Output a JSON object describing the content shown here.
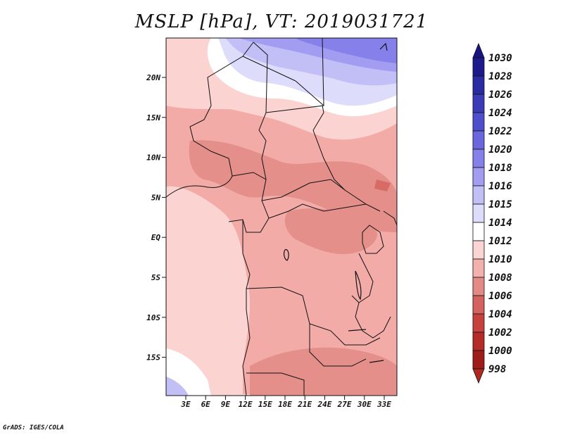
{
  "title": "MSLP [hPa], VT: 2019031721",
  "credit": "GrADS: IGES/COLA",
  "map": {
    "lat_labels": [
      "20N",
      "15N",
      "10N",
      "5N",
      "EQ",
      "5S",
      "10S",
      "15S"
    ],
    "lon_labels": [
      "3E",
      "6E",
      "9E",
      "12E",
      "15E",
      "18E",
      "21E",
      "24E",
      "27E",
      "30E",
      "33E"
    ]
  },
  "colorbar": {
    "levels": [
      "1030",
      "1028",
      "1026",
      "1024",
      "1022",
      "1020",
      "1018",
      "1016",
      "1015",
      "1014",
      "1012",
      "1010",
      "1008",
      "1006",
      "1004",
      "1002",
      "1000",
      "998"
    ],
    "colors": [
      "#1d1a8e",
      "#2a2aa3",
      "#3b3bb8",
      "#4f4fcc",
      "#6a66dd",
      "#8580ea",
      "#a39df2",
      "#c2bff7",
      "#dedcfb",
      "#ffffff",
      "#fbd5d3",
      "#f3b1ad",
      "#e38a86",
      "#d4625e",
      "#c7423d",
      "#b42b27",
      "#9e1c19",
      "#86120f"
    ],
    "top_color": "#1a1480",
    "bottom_color": "#b0281f"
  }
}
